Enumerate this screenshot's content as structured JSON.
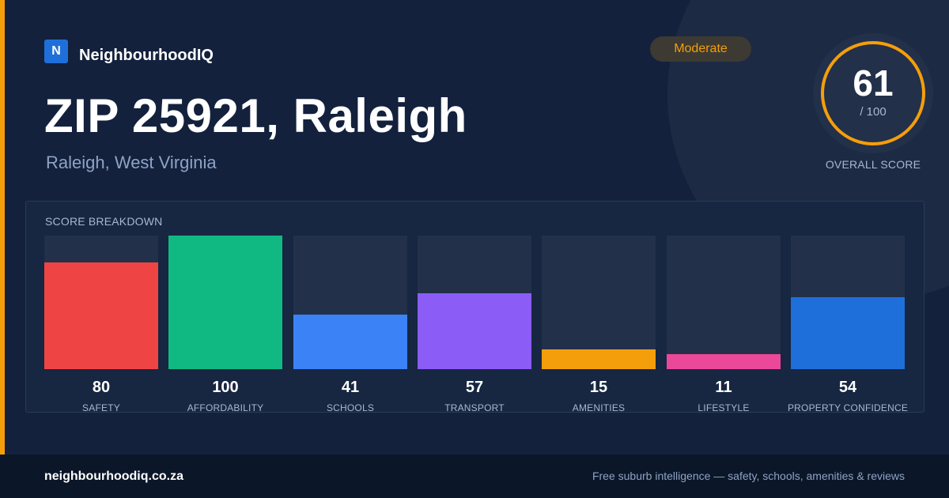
{
  "brand": {
    "logo_letter": "N",
    "name": "NeighbourhoodIQ"
  },
  "header": {
    "title": "ZIP 25921, Raleigh",
    "subtitle": "Raleigh, West Virginia"
  },
  "badge": {
    "label": "Moderate"
  },
  "score": {
    "value": "61",
    "max_label": "/ 100",
    "caption": "OVERALL SCORE",
    "ring_value": 61,
    "ring_max": 100
  },
  "breakdown": {
    "title": "SCORE BREAKDOWN"
  },
  "footer": {
    "url": "neighbourhoodiq.co.za",
    "tagline": "Free suburb intelligence — safety, schools, amenities & reviews"
  },
  "colors": {
    "accent": "#f59e0b",
    "background": "#13213d",
    "footer": "#0b1628",
    "track": "#22304a"
  },
  "chart_data": {
    "type": "bar",
    "title": "SCORE BREAKDOWN",
    "ylim": [
      0,
      100
    ],
    "grid": false,
    "categories": [
      "SAFETY",
      "AFFORDABILITY",
      "SCHOOLS",
      "TRANSPORT",
      "AMENITIES",
      "LIFESTYLE",
      "PROPERTY CONFIDENCE"
    ],
    "values": [
      80,
      100,
      41,
      57,
      15,
      11,
      54
    ],
    "bar_colors": [
      "#ef4444",
      "#10b981",
      "#3b82f6",
      "#8b5cf6",
      "#f59e0b",
      "#ec4899",
      "#1f6fdb"
    ]
  }
}
